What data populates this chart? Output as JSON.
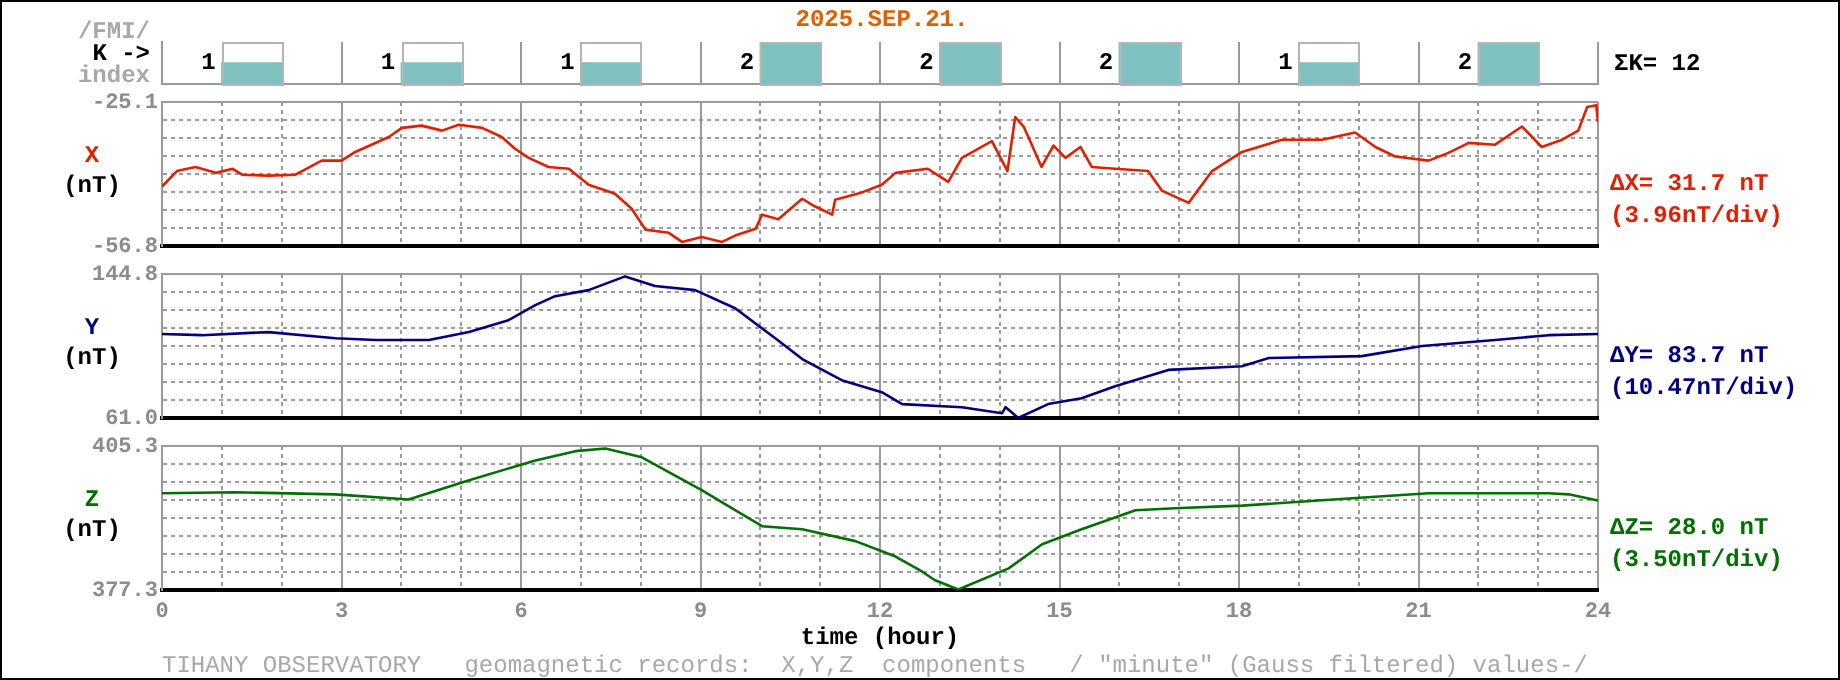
{
  "chart_data": [
    {
      "type": "bar",
      "title": "2025.SEP.21.",
      "categories": [
        null,
        null,
        null,
        null,
        null,
        null,
        null,
        null
      ],
      "values": [
        1,
        1,
        1,
        2,
        2,
        2,
        1,
        2
      ],
      "color": "#7fc0c0",
      "tick_labels": false,
      "grid": "x",
      "data_labels": true,
      "annotations": [
        "/FMI/",
        "K ->",
        "index",
        "ΣK= 12"
      ]
    },
    {
      "type": "line",
      "ylabel": "X (nT)",
      "color": "#e02000",
      "marker": "none",
      "line_style": "solid",
      "grid": true,
      "tick_labels": "y",
      "xlim": [
        0,
        24
      ],
      "xticks": [
        0,
        {
          "value": 1,
          "label": null
        },
        {
          "value": 2,
          "label": null
        },
        3,
        {
          "value": 4,
          "label": null
        },
        {
          "value": 5,
          "label": null
        },
        6,
        {
          "value": 7,
          "label": null
        },
        {
          "value": 8,
          "label": null
        },
        9,
        {
          "value": 10,
          "label": null
        },
        {
          "value": 11,
          "label": null
        },
        12,
        {
          "value": 13,
          "label": null
        },
        {
          "value": 14,
          "label": null
        },
        15,
        {
          "value": 16,
          "label": null
        },
        {
          "value": 17,
          "label": null
        },
        18,
        {
          "value": 19,
          "label": null
        },
        {
          "value": 20,
          "label": null
        },
        21,
        {
          "value": 22,
          "label": null
        },
        {
          "value": 23,
          "label": null
        },
        24
      ],
      "ylim": [
        -56.8,
        -25.1
      ],
      "yticks": [
        -56.8,
        {
          "value": -52.84,
          "label": null
        },
        {
          "value": -48.88,
          "label": null
        },
        {
          "value": -44.91,
          "label": null
        },
        {
          "value": -40.95,
          "label": null
        },
        {
          "value": -36.99,
          "label": null
        },
        {
          "value": -33.03,
          "label": null
        },
        {
          "value": -29.06,
          "label": null
        },
        -25.1
      ],
      "x": [
        0,
        0.25,
        0.56,
        0.9,
        1.18,
        1.34,
        1.78,
        2.23,
        2.67,
        3.0,
        3.23,
        3.79,
        4.01,
        4.34,
        4.68,
        4.96,
        5.35,
        5.68,
        5.9,
        6.13,
        6.46,
        6.8,
        7.13,
        7.57,
        7.85,
        8.08,
        8.47,
        8.69,
        9.02,
        9.36,
        9.58,
        9.92,
        10.03,
        10.3,
        10.7,
        10.9,
        11.2,
        11.25,
        11.7,
        12.03,
        12.26,
        12.8,
        13.14,
        13.37,
        13.87,
        14.13,
        14.26,
        14.4,
        14.5,
        14.7,
        14.9,
        15.1,
        15.35,
        15.54,
        15.93,
        16.48,
        16.71,
        17.16,
        17.55,
        18.05,
        18.72,
        19.39,
        19.94,
        20.28,
        20.61,
        21.17,
        21.5,
        21.84,
        22.28,
        22.73,
        23.06,
        23.4,
        23.67,
        23.82,
        23.97,
        24.0
      ],
      "values": [
        -43.7,
        -40.3,
        -39.4,
        -40.7,
        -39.8,
        -41.1,
        -41.3,
        -41.1,
        -38.0,
        -38.0,
        -36.1,
        -32.8,
        -30.8,
        -30.3,
        -31.4,
        -30.1,
        -30.8,
        -32.8,
        -35.4,
        -37.4,
        -39.4,
        -39.8,
        -43.3,
        -45.3,
        -48.6,
        -53.2,
        -53.9,
        -55.9,
        -54.8,
        -55.9,
        -54.5,
        -53.0,
        -49.9,
        -50.9,
        -46.4,
        -48.0,
        -49.9,
        -46.6,
        -45.0,
        -43.3,
        -40.7,
        -39.8,
        -42.7,
        -37.4,
        -33.7,
        -40.3,
        -28.4,
        -30.5,
        -33.4,
        -39.4,
        -34.7,
        -37.4,
        -35.0,
        -39.4,
        -39.8,
        -40.3,
        -44.6,
        -47.3,
        -40.3,
        -36.1,
        -33.4,
        -33.4,
        -31.8,
        -35.0,
        -37.1,
        -38.0,
        -36.3,
        -34.1,
        -34.5,
        -30.5,
        -35.0,
        -33.4,
        -31.4,
        -26.2,
        -25.8,
        -29.5
      ],
      "annotations": [
        "ΔX= 31.7 nT",
        "(3.96nT/div)"
      ]
    },
    {
      "type": "line",
      "ylabel": "Y (nT)",
      "color": "#000080",
      "marker": "none",
      "line_style": "solid",
      "grid": true,
      "tick_labels": "y",
      "xlim": [
        0,
        24
      ],
      "xticks": [
        0,
        {
          "value": 1,
          "label": null
        },
        {
          "value": 2,
          "label": null
        },
        3,
        {
          "value": 4,
          "label": null
        },
        {
          "value": 5,
          "label": null
        },
        6,
        {
          "value": 7,
          "label": null
        },
        {
          "value": 8,
          "label": null
        },
        9,
        {
          "value": 10,
          "label": null
        },
        {
          "value": 11,
          "label": null
        },
        12,
        {
          "value": 13,
          "label": null
        },
        {
          "value": 14,
          "label": null
        },
        15,
        {
          "value": 16,
          "label": null
        },
        {
          "value": 17,
          "label": null
        },
        18,
        {
          "value": 19,
          "label": null
        },
        {
          "value": 20,
          "label": null
        },
        21,
        {
          "value": 22,
          "label": null
        },
        {
          "value": 23,
          "label": null
        },
        24
      ],
      "ylim": [
        61.0,
        144.8
      ],
      "yticks": [
        {
          "value": 61.0,
          "label": "61.0"
        },
        {
          "value": 71.48,
          "label": null
        },
        {
          "value": 81.95,
          "label": null
        },
        {
          "value": 92.43,
          "label": null
        },
        {
          "value": 102.9,
          "label": null
        },
        {
          "value": 113.38,
          "label": null
        },
        {
          "value": 123.85,
          "label": null
        },
        {
          "value": 134.33,
          "label": null
        },
        144.8
      ],
      "x": [
        0,
        0.67,
        1.78,
        2.9,
        3.57,
        4.46,
        5.13,
        5.79,
        6.24,
        6.57,
        7.13,
        7.74,
        8.24,
        8.91,
        9.58,
        10.25,
        10.7,
        11.36,
        12.03,
        12.37,
        13.37,
        14.04,
        14.1,
        14.31,
        14.81,
        15.37,
        15.93,
        16.82,
        18.05,
        18.5,
        20.05,
        21.06,
        22.28,
        23.17,
        24
      ],
      "values": [
        109.9,
        109.2,
        111.0,
        107.4,
        106.4,
        106.4,
        111.0,
        117.9,
        126.7,
        131.9,
        135.4,
        143.4,
        137.8,
        135.4,
        124.9,
        107.4,
        95.3,
        83.0,
        76.0,
        69.1,
        67.3,
        63.8,
        67.3,
        61.0,
        69.1,
        72.5,
        79.5,
        89.0,
        91.1,
        95.9,
        97.0,
        102.9,
        106.4,
        109.2,
        109.9
      ],
      "annotations": [
        "ΔY= 83.7 nT",
        "(10.47nT/div)"
      ]
    },
    {
      "type": "line",
      "ylabel": "Z (nT)",
      "xlabel": "time (hour)",
      "color": "#007000",
      "marker": "none",
      "line_style": "solid",
      "grid": true,
      "xlim": [
        0,
        24
      ],
      "xticks": [
        0,
        {
          "value": 1,
          "label": null
        },
        {
          "value": 2,
          "label": null
        },
        3,
        {
          "value": 4,
          "label": null
        },
        {
          "value": 5,
          "label": null
        },
        6,
        {
          "value": 7,
          "label": null
        },
        {
          "value": 8,
          "label": null
        },
        9,
        {
          "value": 10,
          "label": null
        },
        {
          "value": 11,
          "label": null
        },
        12,
        {
          "value": 13,
          "label": null
        },
        {
          "value": 14,
          "label": null
        },
        15,
        {
          "value": 16,
          "label": null
        },
        {
          "value": 17,
          "label": null
        },
        18,
        {
          "value": 19,
          "label": null
        },
        {
          "value": 20,
          "label": null
        },
        21,
        {
          "value": 22,
          "label": null
        },
        {
          "value": 23,
          "label": null
        },
        24
      ],
      "ylim": [
        377.3,
        405.3
      ],
      "yticks": [
        377.3,
        {
          "value": 380.8,
          "label": null
        },
        {
          "value": 384.3,
          "label": null
        },
        {
          "value": 387.8,
          "label": null
        },
        {
          "value": 391.3,
          "label": null
        },
        {
          "value": 394.8,
          "label": null
        },
        {
          "value": 398.3,
          "label": null
        },
        {
          "value": 401.8,
          "label": null
        },
        405.3
      ],
      "x": [
        0,
        1.23,
        2.9,
        4.12,
        5.12,
        6.24,
        6.91,
        7.41,
        8.02,
        8.47,
        9.02,
        10.03,
        10.7,
        11.59,
        12.26,
        12.7,
        12.92,
        13.31,
        14.15,
        14.71,
        15.37,
        16.27,
        16.93,
        18.05,
        19.83,
        21.17,
        23.17,
        23.51,
        24
      ],
      "values": [
        396.1,
        396.3,
        395.9,
        394.9,
        398.6,
        402.5,
        404.3,
        404.8,
        403.1,
        400.2,
        396.7,
        389.7,
        389.1,
        386.8,
        383.8,
        380.9,
        379.2,
        377.4,
        381.5,
        386.2,
        389.1,
        392.8,
        393.2,
        393.7,
        395.1,
        396.1,
        396.1,
        395.9,
        394.7
      ],
      "annotations": [
        "ΔZ= 28.0 nT",
        "(3.50nT/div)",
        "TIHANY OBSERVATORY   geomagnetic records:  X,Y,Z  components   / \"minute\" (Gauss filtered) values-/"
      ]
    }
  ]
}
